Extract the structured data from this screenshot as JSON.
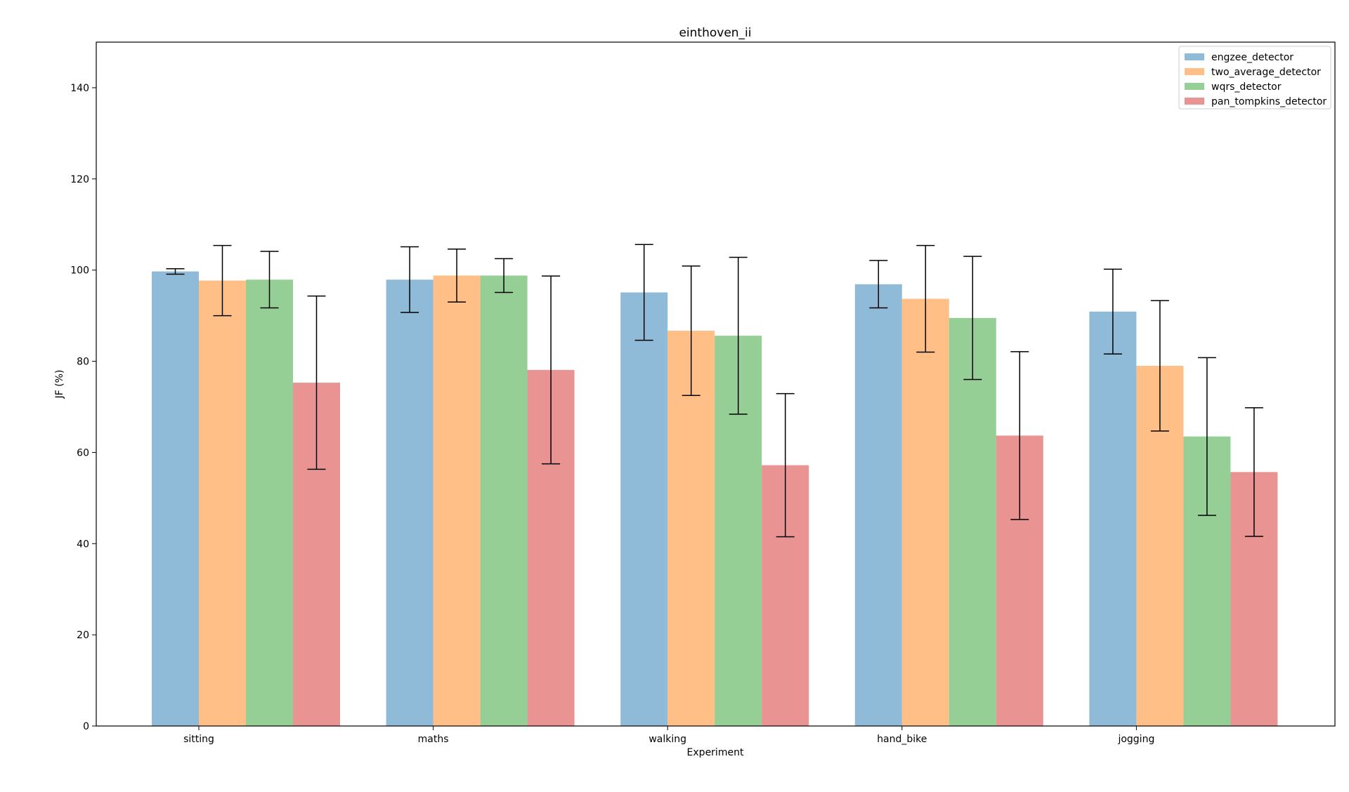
{
  "chart_data": {
    "type": "bar",
    "title": "einthoven_ii",
    "xlabel": "Experiment",
    "ylabel": "JF (%)",
    "ylim": [
      0,
      150
    ],
    "yticks": [
      0,
      20,
      40,
      60,
      80,
      100,
      120,
      140
    ],
    "categories": [
      "sitting",
      "maths",
      "walking",
      "hand_bike",
      "jogging"
    ],
    "legend_position": "top-right",
    "grid": false,
    "series": [
      {
        "name": "engzee_detector",
        "color": "#1f77b4",
        "values": [
          99.7,
          97.9,
          95.1,
          96.9,
          90.9
        ],
        "error": [
          0.6,
          7.2,
          10.5,
          5.2,
          9.3
        ]
      },
      {
        "name": "two_average_detector",
        "color": "#ff7f0e",
        "values": [
          97.7,
          98.8,
          86.7,
          93.7,
          79.0
        ],
        "error": [
          7.7,
          5.8,
          14.2,
          11.7,
          14.3
        ]
      },
      {
        "name": "wqrs_detector",
        "color": "#2ca02c",
        "values": [
          97.9,
          98.8,
          85.6,
          89.5,
          63.5
        ],
        "error": [
          6.2,
          3.7,
          17.2,
          13.5,
          17.3
        ]
      },
      {
        "name": "pan_tompkins_detector",
        "color": "#d62728",
        "values": [
          75.3,
          78.1,
          57.2,
          63.7,
          55.7
        ],
        "error": [
          19.0,
          20.6,
          15.7,
          18.4,
          14.1
        ]
      }
    ]
  }
}
